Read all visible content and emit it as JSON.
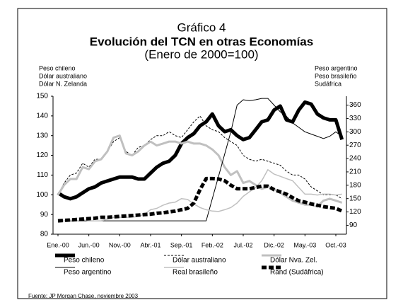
{
  "chart_data": {
    "type": "line",
    "title": [
      "Gráfico 4",
      "Evolución del TCN en otras Economías",
      "(Enero de 2000=100)"
    ],
    "y_label": [
      "Peso chileno",
      "Dólar australiano",
      "Dólar N. Zelanda"
    ],
    "y2_label": [
      "Peso argentino",
      "Peso brasileño",
      "Sudáfrica"
    ],
    "source": "Fuente: JP Morgan Chase, noviembre 2003",
    "categories": [
      "Ene.-00",
      null,
      null,
      null,
      null,
      "Jun.-00",
      null,
      null,
      null,
      null,
      "Nov.-00",
      null,
      null,
      null,
      null,
      "Abr.-01",
      null,
      null,
      null,
      null,
      "Sep.-01",
      null,
      null,
      null,
      null,
      "Feb.-02",
      null,
      null,
      null,
      null,
      "Jul.-02",
      null,
      null,
      null,
      null,
      "Dic.-02",
      null,
      null,
      null,
      null,
      "May.-03",
      null,
      null,
      null,
      null,
      "Oct.-03",
      null
    ],
    "ylim": [
      80,
      150
    ],
    "yticks": [
      80,
      90,
      100,
      110,
      120,
      130,
      140,
      150
    ],
    "y2lim": [
      70,
      380
    ],
    "y2ticks": [
      90,
      120,
      150,
      180,
      210,
      240,
      270,
      300,
      330,
      360
    ],
    "grid": false,
    "series": [
      {
        "name": "Peso chileno",
        "color": "#000000",
        "width": 5,
        "dash": "none",
        "values": [
          101,
          99,
          98,
          99,
          101,
          103,
          104,
          106,
          107,
          108,
          109,
          109,
          109,
          108,
          108,
          111,
          114,
          116,
          117,
          120,
          126,
          129,
          131,
          135,
          137,
          141,
          135,
          132,
          133,
          130,
          128,
          129,
          133,
          137,
          138,
          143,
          145,
          138,
          137,
          143,
          147,
          146,
          141,
          139,
          138,
          138,
          128
        ]
      },
      {
        "name": "Dólar australiano",
        "color": "#000000",
        "width": 1,
        "dash": "3 2",
        "values": [
          100,
          106,
          110,
          111,
          116,
          114,
          118,
          118,
          122,
          127,
          129,
          122,
          120,
          124,
          125,
          128,
          130,
          130,
          132,
          130,
          129,
          133,
          137,
          140,
          135,
          133,
          132,
          129,
          127,
          125,
          120,
          118,
          117,
          118,
          117,
          116,
          115,
          112,
          110,
          110,
          108,
          104,
          102,
          100,
          100,
          100,
          98
        ]
      },
      {
        "name": "Dólar Nva. Zel.",
        "color": "#c0c0c0",
        "width": 3,
        "dash": "none",
        "values": [
          100,
          105,
          108,
          108,
          114,
          113,
          117,
          118,
          122,
          129,
          130,
          121,
          120,
          122,
          125,
          127,
          125,
          126,
          127,
          127,
          126,
          127,
          126,
          126,
          125,
          123,
          120,
          114,
          110,
          112,
          106,
          107,
          105,
          103,
          104,
          103,
          101,
          99,
          97,
          96,
          95,
          95,
          94,
          97,
          98,
          97,
          96
        ]
      },
      {
        "name": "Peso argentino",
        "color": "#000000",
        "width": 1,
        "dash": "none",
        "axis": "y2",
        "values": [
          100,
          100,
          100,
          100,
          100,
          100,
          100,
          100,
          100,
          100,
          100,
          100,
          100,
          100,
          100,
          100,
          100,
          100,
          100,
          100,
          100,
          100,
          100,
          100,
          100,
          150,
          200,
          250,
          300,
          360,
          372,
          370,
          372,
          375,
          375,
          360,
          345,
          335,
          320,
          310,
          300,
          295,
          290,
          285,
          290,
          300,
          290
        ]
      },
      {
        "name": "Real brasileño",
        "color": "#c0c0c0",
        "width": 1.5,
        "dash": "none",
        "axis": "y2",
        "values": [
          100,
          100,
          102,
          100,
          103,
          100,
          100,
          100,
          104,
          108,
          108,
          108,
          108,
          110,
          115,
          125,
          128,
          135,
          140,
          142,
          150,
          148,
          138,
          130,
          125,
          122,
          121,
          125,
          130,
          140,
          155,
          165,
          175,
          190,
          215,
          205,
          200,
          195,
          190,
          175,
          160,
          160,
          158,
          160,
          160,
          158,
          160
        ]
      },
      {
        "name": "Rand (Sudáfrica)",
        "color": "#000000",
        "width": 5,
        "dash": "7 3",
        "axis": "y2",
        "values": [
          100,
          101,
          102,
          103,
          104,
          105,
          106,
          108,
          108,
          109,
          110,
          111,
          112,
          113,
          114,
          115,
          117,
          118,
          120,
          122,
          125,
          128,
          140,
          170,
          195,
          195,
          194,
          190,
          180,
          172,
          172,
          172,
          175,
          178,
          178,
          170,
          165,
          160,
          152,
          145,
          142,
          138,
          135,
          132,
          130,
          128,
          122
        ]
      }
    ]
  }
}
